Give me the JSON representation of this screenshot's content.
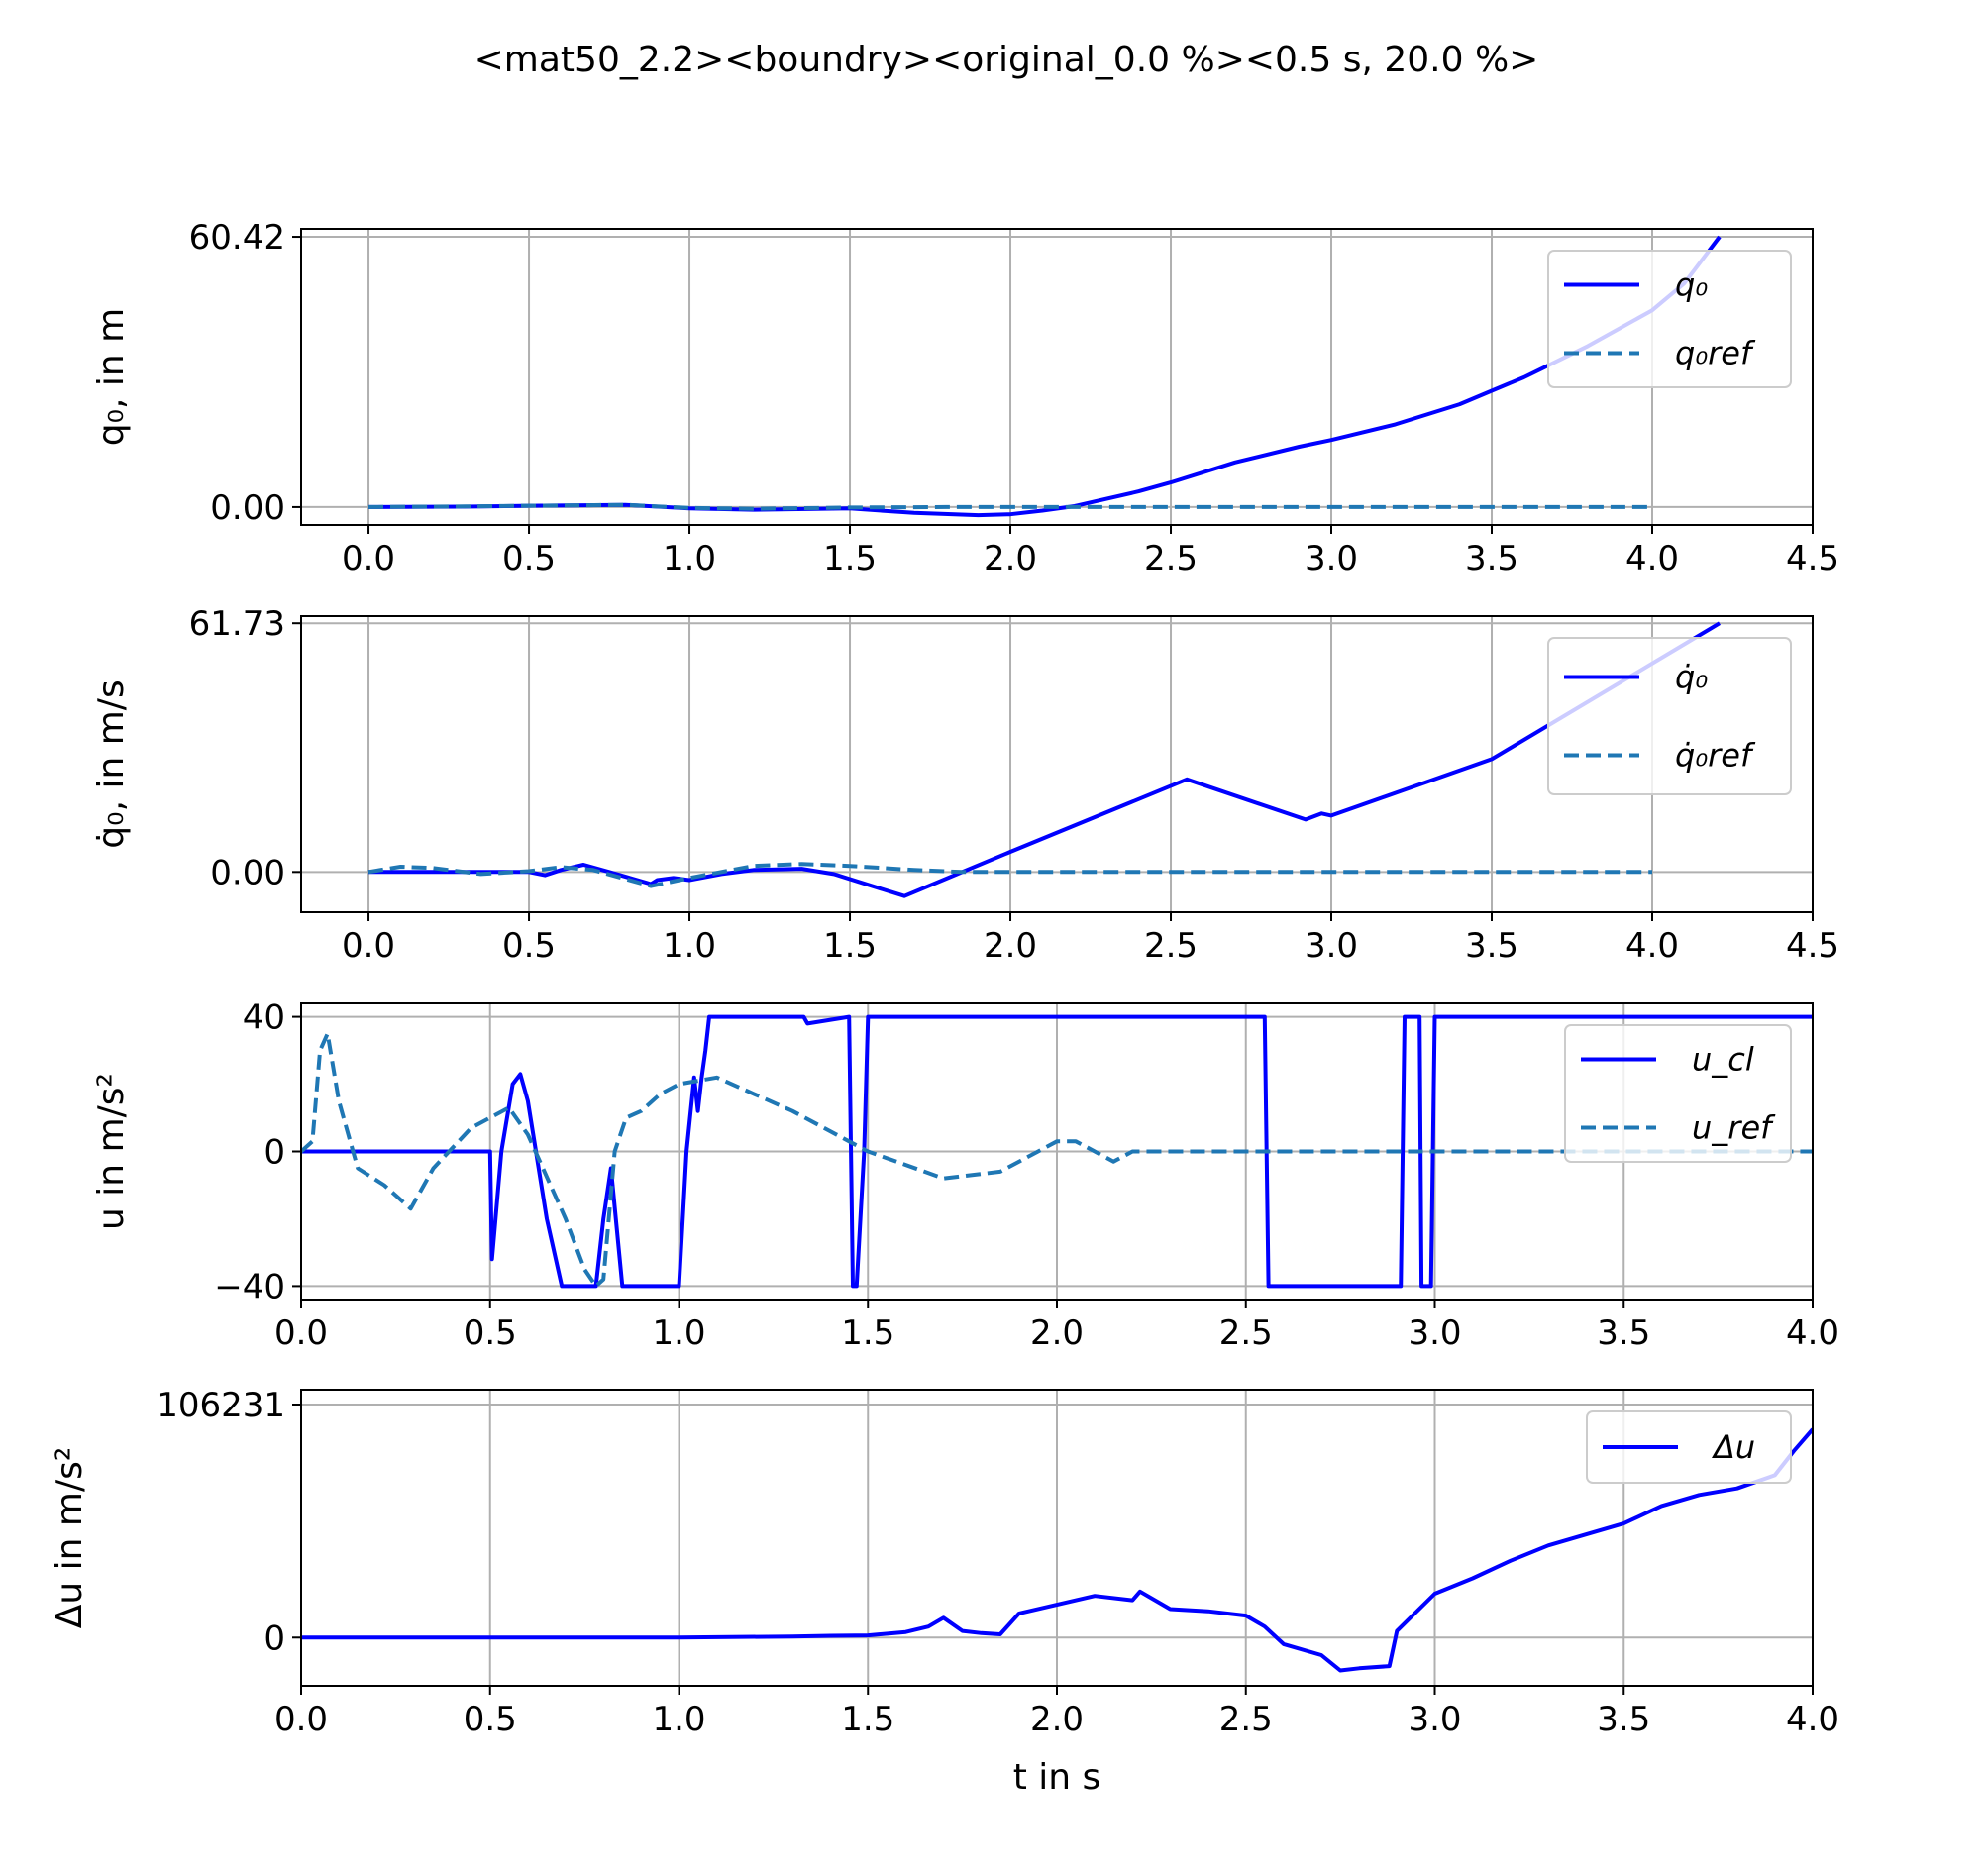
{
  "figure_title": "<mat50_2.2><boundry><original_0.0 %><0.5 s, 20.0 %>",
  "colors": {
    "solid": "#0000ff",
    "dashed": "#1f77b4",
    "grid": "#b0b0b0"
  },
  "chart_data": [
    {
      "type": "line",
      "ylabel": "q₀, in m",
      "xlim": [
        -0.21,
        4.5
      ],
      "ylim": [
        -4.0,
        62.2
      ],
      "xticks": [
        0.0,
        0.5,
        1.0,
        1.5,
        2.0,
        2.5,
        3.0,
        3.5,
        4.0,
        4.5
      ],
      "xtick_labels": [
        "0.0",
        "0.5",
        "1.0",
        "1.5",
        "2.0",
        "2.5",
        "3.0",
        "3.5",
        "4.0",
        "4.5"
      ],
      "yticks": [
        0.0,
        60.42
      ],
      "ytick_labels": [
        "0.00",
        "60.42"
      ],
      "legend_position": "upper right",
      "series": [
        {
          "name": "q₀",
          "style": "solid",
          "x": [
            0.0,
            0.3,
            0.5,
            0.8,
            1.0,
            1.2,
            1.5,
            1.7,
            1.9,
            2.0,
            2.1,
            2.2,
            2.4,
            2.5,
            2.7,
            2.9,
            3.0,
            3.2,
            3.4,
            3.5,
            3.6,
            3.8,
            4.0,
            4.1,
            4.21
          ],
          "y": [
            0.0,
            0.1,
            0.3,
            0.5,
            -0.3,
            -0.6,
            -0.3,
            -1.3,
            -1.8,
            -1.6,
            -0.8,
            0.2,
            3.5,
            5.5,
            10.0,
            13.5,
            15.0,
            18.5,
            23.0,
            26.0,
            29.0,
            36.0,
            44.0,
            50.0,
            60.42
          ]
        },
        {
          "name": "q₀ref",
          "style": "dashed",
          "x": [
            0.0,
            0.3,
            0.5,
            0.8,
            1.0,
            1.2,
            1.5,
            1.8,
            2.0,
            2.5,
            3.0,
            3.5,
            4.0
          ],
          "y": [
            0.0,
            0.15,
            0.3,
            0.5,
            -0.2,
            -0.4,
            -0.1,
            0.0,
            0.0,
            0.0,
            0.0,
            0.0,
            0.0
          ]
        }
      ]
    },
    {
      "type": "line",
      "ylabel": "q̇₀,  in m/s",
      "xlim": [
        -0.21,
        4.5
      ],
      "ylim": [
        -10.0,
        63.5
      ],
      "xticks": [
        0.0,
        0.5,
        1.0,
        1.5,
        2.0,
        2.5,
        3.0,
        3.5,
        4.0,
        4.5
      ],
      "xtick_labels": [
        "0.0",
        "0.5",
        "1.0",
        "1.5",
        "2.0",
        "2.5",
        "3.0",
        "3.5",
        "4.0",
        "4.5"
      ],
      "yticks": [
        0.0,
        61.73
      ],
      "ytick_labels": [
        "0.00",
        "61.73"
      ],
      "legend_position": "upper right",
      "series": [
        {
          "name": "q̇₀",
          "style": "solid",
          "x": [
            0.0,
            0.5,
            0.55,
            0.6,
            0.67,
            0.75,
            0.88,
            0.9,
            0.95,
            1.0,
            1.1,
            1.2,
            1.35,
            1.45,
            1.67,
            2.0,
            2.55,
            2.92,
            2.97,
            3.0,
            3.5,
            4.21
          ],
          "y": [
            0.0,
            0.0,
            -0.8,
            0.5,
            1.8,
            0.0,
            -3.0,
            -2.0,
            -1.5,
            -2.0,
            -0.5,
            0.5,
            0.8,
            -0.5,
            -6.0,
            5.0,
            23.0,
            13.0,
            14.5,
            14.0,
            28.0,
            61.73
          ]
        },
        {
          "name": "q̇₀ref",
          "style": "dashed",
          "x": [
            0.0,
            0.1,
            0.2,
            0.35,
            0.5,
            0.6,
            0.7,
            0.88,
            1.0,
            1.2,
            1.35,
            1.5,
            1.7,
            1.85,
            2.0,
            2.5,
            3.0,
            3.5,
            4.0
          ],
          "y": [
            0.0,
            1.3,
            1.0,
            -0.5,
            0.2,
            1.2,
            0.5,
            -3.5,
            -1.5,
            1.5,
            2.0,
            1.5,
            0.5,
            0.0,
            0.0,
            0.0,
            0.0,
            0.0,
            0.0
          ]
        }
      ]
    },
    {
      "type": "line",
      "ylabel": "u in m/s²",
      "xlim": [
        0.0,
        4.0
      ],
      "ylim": [
        -44.0,
        44.0
      ],
      "xticks": [
        0.0,
        0.5,
        1.0,
        1.5,
        2.0,
        2.5,
        3.0,
        3.5,
        4.0
      ],
      "xtick_labels": [
        "0.0",
        "0.5",
        "1.0",
        "1.5",
        "2.0",
        "2.5",
        "3.0",
        "3.5",
        "4.0"
      ],
      "yticks": [
        -40,
        0,
        40
      ],
      "ytick_labels": [
        "−40",
        "0",
        "40"
      ],
      "legend_position": "upper right",
      "series": [
        {
          "name": "u_cl",
          "style": "solid",
          "x": [
            0.0,
            0.5,
            0.505,
            0.53,
            0.56,
            0.58,
            0.6,
            0.65,
            0.69,
            0.78,
            0.8,
            0.82,
            0.85,
            0.86,
            0.9,
            1.0,
            1.02,
            1.04,
            1.05,
            1.06,
            1.07,
            1.08,
            1.33,
            1.34,
            1.45,
            1.46,
            1.47,
            1.49,
            1.5,
            2.55,
            2.56,
            2.91,
            2.92,
            2.96,
            2.965,
            2.99,
            3.0,
            4.0
          ],
          "y": [
            0,
            0,
            -32,
            0,
            20,
            23,
            15,
            -20,
            -40,
            -40,
            -20,
            -5,
            -40,
            -40,
            -40,
            -40,
            0,
            22,
            12,
            22,
            30,
            40,
            40,
            38,
            40,
            -40,
            -40,
            0,
            40,
            40,
            -40,
            -40,
            40,
            40,
            -40,
            -40,
            40,
            40
          ]
        },
        {
          "name": "u_ref",
          "style": "dashed",
          "x": [
            0.0,
            0.03,
            0.05,
            0.07,
            0.1,
            0.15,
            0.22,
            0.29,
            0.35,
            0.45,
            0.55,
            0.6,
            0.7,
            0.75,
            0.78,
            0.8,
            0.83,
            0.86,
            0.9,
            0.95,
            1.0,
            1.1,
            1.3,
            1.5,
            1.7,
            1.85,
            2.0,
            2.05,
            2.1,
            2.15,
            2.2,
            2.5,
            3.0,
            3.5,
            4.0
          ],
          "y": [
            0,
            3,
            30,
            35,
            15,
            -5,
            -10,
            -17,
            -5,
            7,
            13,
            5,
            -20,
            -35,
            -40,
            -38,
            0,
            10,
            12,
            17,
            20,
            22,
            12,
            0,
            -8,
            -6,
            3,
            3,
            0,
            -3,
            0,
            0,
            0,
            0,
            0
          ]
        }
      ]
    },
    {
      "type": "line",
      "ylabel": "Δu in m/s²",
      "xlabel": "t in s",
      "xlim": [
        0.0,
        4.0
      ],
      "ylim": [
        -22000,
        113000
      ],
      "xticks": [
        0.0,
        0.5,
        1.0,
        1.5,
        2.0,
        2.5,
        3.0,
        3.5,
        4.0
      ],
      "xtick_labels": [
        "0.0",
        "0.5",
        "1.0",
        "1.5",
        "2.0",
        "2.5",
        "3.0",
        "3.5",
        "4.0"
      ],
      "yticks": [
        0,
        106231
      ],
      "ytick_labels": [
        "0",
        "106231"
      ],
      "legend_position": "upper right",
      "series": [
        {
          "name": "Δu",
          "style": "solid",
          "x": [
            0.0,
            1.0,
            1.3,
            1.4,
            1.5,
            1.6,
            1.66,
            1.7,
            1.75,
            1.8,
            1.85,
            1.9,
            2.0,
            2.1,
            2.2,
            2.22,
            2.3,
            2.4,
            2.5,
            2.55,
            2.6,
            2.7,
            2.75,
            2.8,
            2.88,
            2.9,
            3.0,
            3.1,
            3.2,
            3.3,
            3.4,
            3.5,
            3.6,
            3.7,
            3.8,
            3.9,
            3.95,
            4.0
          ],
          "y": [
            0,
            0,
            500,
            800,
            1000,
            2500,
            5000,
            9000,
            3000,
            2000,
            1500,
            11000,
            15000,
            19000,
            17000,
            21000,
            13000,
            12000,
            10000,
            5000,
            -3000,
            -8000,
            -15000,
            -14000,
            -13000,
            3000,
            20000,
            27000,
            35000,
            42000,
            47000,
            52000,
            60000,
            65000,
            68000,
            74000,
            85000,
            95000
          ]
        }
      ]
    }
  ]
}
